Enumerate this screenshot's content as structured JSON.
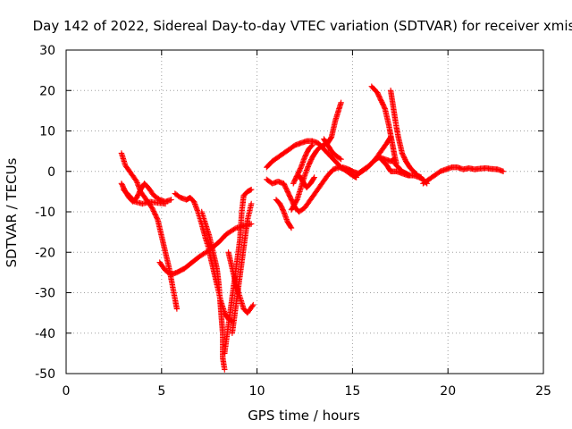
{
  "chart_data": {
    "type": "scatter",
    "title": "Day 142 of 2022, Sidereal Day-to-day VTEC variation (SDTVAR) for receiver xmis",
    "xlabel": "GPS time / hours",
    "ylabel": "SDTVAR / TECUs",
    "xlim": [
      0,
      25
    ],
    "ylim": [
      -50,
      30
    ],
    "xticks": [
      0,
      5,
      10,
      15,
      20,
      25
    ],
    "yticks": [
      -50,
      -40,
      -30,
      -20,
      -10,
      0,
      10,
      20,
      30
    ],
    "grid": true,
    "legend": "none",
    "marker": "plus",
    "color": "#ff0000",
    "tracks": [
      [
        [
          2.9,
          4.5
        ],
        [
          3.1,
          1.5
        ],
        [
          3.4,
          -0.5
        ],
        [
          3.7,
          -2.5
        ],
        [
          3.9,
          -5.0
        ],
        [
          4.2,
          -7.0
        ],
        [
          4.5,
          -9.0
        ],
        [
          4.8,
          -12.0
        ],
        [
          5.0,
          -16.0
        ],
        [
          5.2,
          -20.0
        ],
        [
          5.4,
          -24.0
        ],
        [
          5.6,
          -29.0
        ],
        [
          5.8,
          -34.0
        ]
      ],
      [
        [
          2.9,
          -3.0
        ],
        [
          3.1,
          -5.0
        ],
        [
          3.3,
          -6.5
        ],
        [
          3.5,
          -7.5
        ],
        [
          3.7,
          -6.5
        ],
        [
          3.9,
          -4.5
        ],
        [
          4.1,
          -3.0
        ],
        [
          4.3,
          -4.0
        ],
        [
          4.6,
          -6.0
        ],
        [
          4.9,
          -7.0
        ],
        [
          5.2,
          -7.5
        ],
        [
          5.5,
          -7.0
        ]
      ],
      [
        [
          3.0,
          -4.5
        ],
        [
          3.3,
          -6.0
        ],
        [
          3.6,
          -7.5
        ],
        [
          4.0,
          -8.0
        ],
        [
          4.4,
          -7.5
        ],
        [
          4.8,
          -7.8
        ],
        [
          5.2,
          -8.0
        ]
      ],
      [
        [
          4.9,
          -22.5
        ],
        [
          5.2,
          -24.5
        ],
        [
          5.5,
          -25.5
        ],
        [
          5.8,
          -25.0
        ],
        [
          6.2,
          -24.0
        ],
        [
          6.6,
          -22.5
        ],
        [
          7.0,
          -21.0
        ],
        [
          7.5,
          -19.5
        ],
        [
          8.0,
          -17.5
        ],
        [
          8.4,
          -15.5
        ],
        [
          8.9,
          -14.0
        ],
        [
          9.3,
          -13.5
        ],
        [
          9.7,
          -13.0
        ]
      ],
      [
        [
          5.7,
          -5.5
        ],
        [
          6.0,
          -6.5
        ],
        [
          6.3,
          -7.0
        ],
        [
          6.5,
          -6.5
        ],
        [
          6.7,
          -7.5
        ],
        [
          6.9,
          -10.0
        ],
        [
          7.1,
          -13.0
        ],
        [
          7.3,
          -16.5
        ],
        [
          7.5,
          -19.5
        ]
      ],
      [
        [
          7.1,
          -10.0
        ],
        [
          7.3,
          -13.0
        ],
        [
          7.5,
          -16.0
        ],
        [
          7.7,
          -20.0
        ],
        [
          7.9,
          -24.0
        ],
        [
          8.0,
          -28.0
        ],
        [
          8.1,
          -34.0
        ],
        [
          8.2,
          -40.0
        ],
        [
          8.2,
          -46.0
        ],
        [
          8.3,
          -49.0
        ]
      ],
      [
        [
          7.5,
          -20.0
        ],
        [
          7.7,
          -24.0
        ],
        [
          7.9,
          -28.0
        ],
        [
          8.1,
          -32.0
        ],
        [
          8.3,
          -35.0
        ],
        [
          8.5,
          -36.5
        ],
        [
          8.7,
          -37.0
        ]
      ],
      [
        [
          8.3,
          -45.0
        ],
        [
          8.5,
          -38.0
        ],
        [
          8.7,
          -31.0
        ],
        [
          8.9,
          -24.0
        ],
        [
          9.1,
          -17.0
        ],
        [
          9.2,
          -10.0
        ],
        [
          9.3,
          -6.0
        ],
        [
          9.5,
          -5.0
        ],
        [
          9.7,
          -4.5
        ]
      ],
      [
        [
          8.5,
          -20.0
        ],
        [
          8.7,
          -24.0
        ],
        [
          8.9,
          -28.0
        ],
        [
          9.1,
          -31.0
        ],
        [
          9.3,
          -34.0
        ],
        [
          9.5,
          -35.0
        ],
        [
          9.8,
          -33.0
        ]
      ],
      [
        [
          8.7,
          -40.0
        ],
        [
          8.9,
          -33.0
        ],
        [
          9.1,
          -26.0
        ],
        [
          9.3,
          -19.0
        ],
        [
          9.5,
          -12.0
        ],
        [
          9.7,
          -8.0
        ]
      ],
      [
        [
          10.5,
          1.0
        ],
        [
          10.8,
          2.5
        ],
        [
          11.1,
          3.5
        ],
        [
          11.4,
          4.5
        ],
        [
          11.7,
          5.5
        ],
        [
          12.0,
          6.5
        ],
        [
          12.3,
          7.0
        ],
        [
          12.6,
          7.5
        ],
        [
          12.9,
          7.5
        ],
        [
          13.2,
          7.0
        ],
        [
          13.5,
          5.5
        ],
        [
          13.8,
          4.0
        ],
        [
          14.1,
          2.5
        ],
        [
          14.4,
          1.0
        ],
        [
          14.7,
          0.0
        ],
        [
          15.0,
          -1.0
        ],
        [
          15.2,
          -1.5
        ]
      ],
      [
        [
          10.5,
          -2.0
        ],
        [
          10.8,
          -3.0
        ],
        [
          11.1,
          -2.5
        ],
        [
          11.4,
          -3.0
        ],
        [
          11.6,
          -5.0
        ],
        [
          11.8,
          -7.0
        ],
        [
          12.0,
          -9.0
        ],
        [
          12.2,
          -10.0
        ],
        [
          12.5,
          -9.0
        ],
        [
          12.8,
          -7.0
        ],
        [
          13.1,
          -5.0
        ],
        [
          13.4,
          -3.0
        ],
        [
          13.7,
          -1.0
        ],
        [
          14.0,
          0.5
        ],
        [
          14.3,
          1.0
        ],
        [
          14.6,
          0.5
        ]
      ],
      [
        [
          11.0,
          -7.0
        ],
        [
          11.2,
          -8.0
        ],
        [
          11.4,
          -10.0
        ],
        [
          11.6,
          -12.5
        ],
        [
          11.8,
          -14.0
        ]
      ],
      [
        [
          11.8,
          -9.5
        ],
        [
          12.1,
          -7.0
        ],
        [
          12.3,
          -4.0
        ],
        [
          12.5,
          -1.0
        ],
        [
          12.7,
          1.5
        ],
        [
          12.9,
          3.5
        ],
        [
          13.1,
          5.0
        ],
        [
          13.3,
          6.0
        ],
        [
          13.5,
          6.5
        ],
        [
          13.7,
          7.0
        ],
        [
          13.9,
          8.5
        ],
        [
          14.0,
          10.5
        ],
        [
          14.1,
          12.5
        ],
        [
          14.2,
          14.0
        ],
        [
          14.3,
          15.5
        ],
        [
          14.4,
          17.0
        ]
      ],
      [
        [
          11.9,
          -3.0
        ],
        [
          12.1,
          -1.0
        ],
        [
          12.3,
          1.0
        ],
        [
          12.5,
          3.5
        ],
        [
          12.7,
          5.5
        ],
        [
          12.9,
          6.5
        ]
      ],
      [
        [
          12.2,
          -1.0
        ],
        [
          12.4,
          -2.5
        ],
        [
          12.6,
          -4.0
        ],
        [
          12.8,
          -3.0
        ],
        [
          13.0,
          -1.5
        ]
      ],
      [
        [
          13.5,
          8.0
        ],
        [
          13.7,
          6.5
        ],
        [
          13.9,
          5.0
        ],
        [
          14.1,
          4.0
        ],
        [
          14.4,
          3.0
        ]
      ],
      [
        [
          14.5,
          1.0
        ],
        [
          14.8,
          0.5
        ],
        [
          15.0,
          0.0
        ],
        [
          15.3,
          -0.5
        ],
        [
          15.6,
          0.5
        ],
        [
          15.9,
          1.5
        ],
        [
          16.2,
          3.0
        ],
        [
          16.5,
          5.0
        ],
        [
          16.8,
          7.0
        ],
        [
          17.0,
          8.5
        ]
      ],
      [
        [
          15.2,
          -1.0
        ],
        [
          15.5,
          0.0
        ],
        [
          15.8,
          1.0
        ],
        [
          16.1,
          2.5
        ],
        [
          16.4,
          3.5
        ],
        [
          16.7,
          3.0
        ],
        [
          17.0,
          2.5
        ],
        [
          17.2,
          3.0
        ]
      ],
      [
        [
          16.0,
          21.0
        ],
        [
          16.3,
          19.5
        ],
        [
          16.5,
          17.5
        ],
        [
          16.7,
          15.5
        ],
        [
          16.8,
          13.5
        ],
        [
          16.9,
          11.5
        ],
        [
          17.0,
          9.0
        ],
        [
          17.1,
          6.5
        ],
        [
          17.2,
          4.0
        ],
        [
          17.3,
          2.0
        ]
      ],
      [
        [
          17.0,
          20.0
        ],
        [
          17.1,
          17.0
        ],
        [
          17.2,
          14.0
        ],
        [
          17.3,
          11.0
        ],
        [
          17.4,
          8.5
        ],
        [
          17.5,
          6.5
        ],
        [
          17.6,
          4.5
        ],
        [
          17.8,
          2.5
        ],
        [
          18.0,
          1.0
        ],
        [
          18.2,
          0.0
        ],
        [
          18.4,
          -1.0
        ],
        [
          18.6,
          -1.5
        ]
      ],
      [
        [
          16.5,
          3.0
        ],
        [
          16.8,
          1.5
        ],
        [
          17.0,
          0.0
        ],
        [
          17.3,
          0.0
        ],
        [
          17.6,
          -0.5
        ],
        [
          17.9,
          -1.0
        ],
        [
          18.2,
          -1.0
        ],
        [
          18.5,
          -1.5
        ],
        [
          18.7,
          -2.0
        ],
        [
          18.9,
          -3.0
        ]
      ],
      [
        [
          17.2,
          2.0
        ],
        [
          17.4,
          1.0
        ],
        [
          17.6,
          0.0
        ],
        [
          17.8,
          -0.5
        ],
        [
          18.0,
          -1.0
        ]
      ],
      [
        [
          18.7,
          -3.0
        ],
        [
          19.0,
          -2.0
        ],
        [
          19.3,
          -1.0
        ],
        [
          19.6,
          0.0
        ],
        [
          19.9,
          0.5
        ],
        [
          20.2,
          1.0
        ],
        [
          20.5,
          1.0
        ],
        [
          20.8,
          0.5
        ],
        [
          21.1,
          0.8
        ],
        [
          21.4,
          0.5
        ],
        [
          21.7,
          0.7
        ],
        [
          22.0,
          0.8
        ],
        [
          22.3,
          0.6
        ],
        [
          22.6,
          0.5
        ],
        [
          22.9,
          0.0
        ]
      ]
    ]
  }
}
